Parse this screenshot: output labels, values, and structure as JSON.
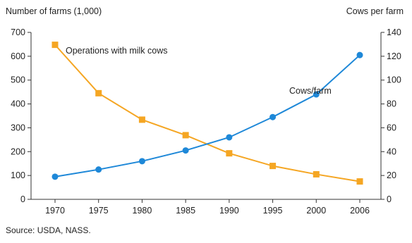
{
  "chart_data": {
    "type": "line",
    "left_axis_title": "Number of farms (1,000)",
    "right_axis_title": "Cows per farm",
    "source": "Source: USDA, NASS.",
    "x": [
      "1970",
      "1975",
      "1980",
      "1985",
      "1990",
      "1995",
      "2000",
      "2006"
    ],
    "left_ylim": [
      0,
      700
    ],
    "left_yticks": [
      0,
      100,
      200,
      300,
      400,
      500,
      600,
      700
    ],
    "right_ylim": [
      0,
      140
    ],
    "right_yticks": [
      0,
      20,
      40,
      60,
      80,
      100,
      120,
      140
    ],
    "series": [
      {
        "name": "Operations with milk cows",
        "axis": "left",
        "color": "#F5A623",
        "marker": "square",
        "values": [
          648,
          445,
          334,
          269,
          193,
          140,
          105,
          75
        ]
      },
      {
        "name": "Cows/farm",
        "axis": "right",
        "color": "#1E88D8",
        "marker": "circle",
        "values": [
          19,
          25,
          32,
          41,
          52,
          69,
          88,
          121
        ]
      }
    ],
    "grid": false
  }
}
